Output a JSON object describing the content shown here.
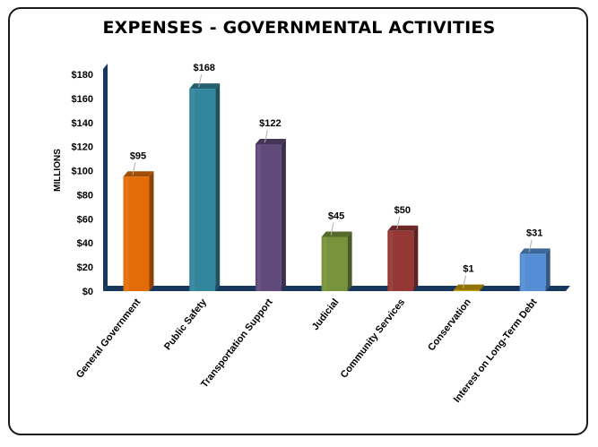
{
  "chart_data": {
    "type": "bar",
    "title": "EXPENSES - GOVERNMENTAL ACTIVITIES",
    "ylabel": "MILLIONS",
    "xlabel": "",
    "ylim": [
      0,
      180
    ],
    "yticks": [
      0,
      20,
      40,
      60,
      80,
      100,
      120,
      140,
      160,
      180
    ],
    "ytick_labels": [
      "$0",
      "$20",
      "$40",
      "$60",
      "$80",
      "$100",
      "$120",
      "$140",
      "$160",
      "$180"
    ],
    "categories": [
      "General Government",
      "Public Safety",
      "Transportation Support",
      "Judicial",
      "Community Services",
      "Conservation",
      "Interest on Long-Term Debt"
    ],
    "values": [
      95,
      168,
      122,
      45,
      50,
      1,
      31
    ],
    "data_labels": [
      "$95",
      "$168",
      "$122",
      "$45",
      "$50",
      "$1",
      "$31"
    ],
    "colors": [
      "#E36C09",
      "#31859C",
      "#604A7B",
      "#77933C",
      "#953735",
      "#C9A100",
      "#558ED5"
    ],
    "floor_color": "#17375E",
    "grid": false,
    "legend": "none"
  }
}
